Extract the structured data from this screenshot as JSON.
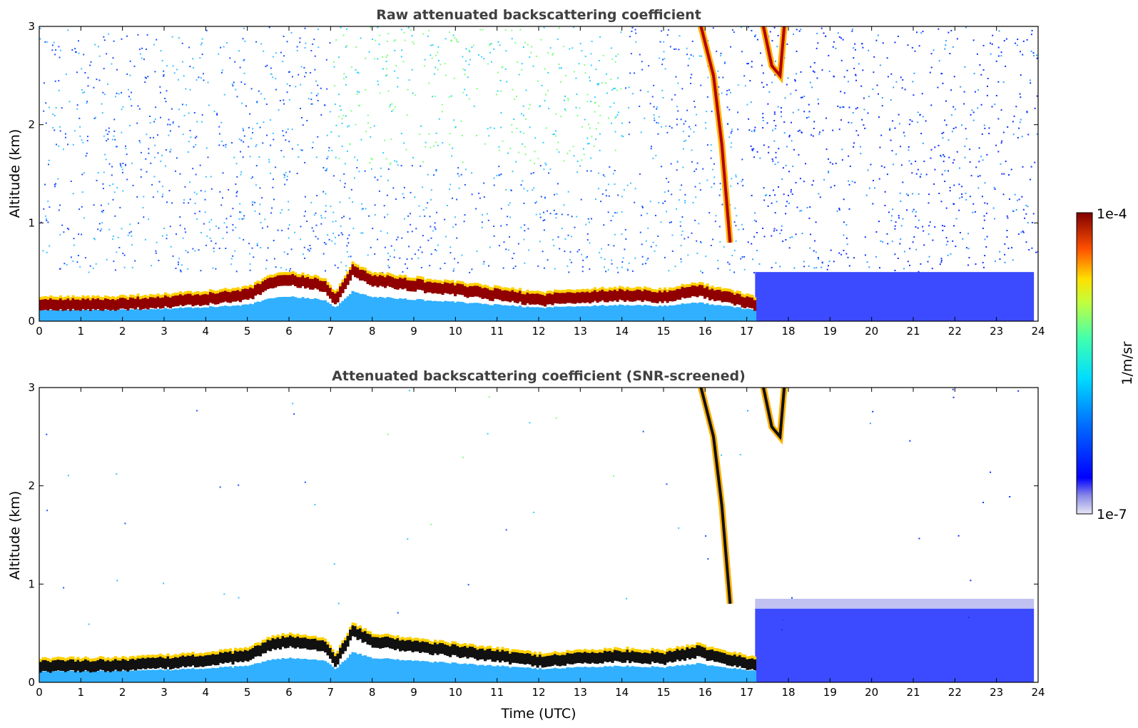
{
  "colorbar": {
    "max_label": "1e-4",
    "min_label": "1e-7",
    "unit_label": "1/m/sr",
    "scale": "log",
    "colormap": "jet"
  },
  "chart_data": [
    {
      "type": "heatmap",
      "title": "Raw attenuated backscattering coefficient",
      "xlabel": "",
      "ylabel": "Altitude (km)",
      "xlim": [
        0,
        24
      ],
      "ylim": [
        0,
        3
      ],
      "xticks": [
        "0",
        "1",
        "2",
        "3",
        "4",
        "5",
        "6",
        "7",
        "8",
        "9",
        "10",
        "11",
        "12",
        "13",
        "14",
        "15",
        "16",
        "17",
        "18",
        "19",
        "20",
        "21",
        "22",
        "23",
        "24"
      ],
      "yticks": [
        "0",
        "1",
        "2",
        "3"
      ],
      "boundary_layer_top_km": {
        "x": [
          0,
          1,
          2,
          3,
          4,
          5,
          5.5,
          6,
          6.8,
          7.1,
          7.5,
          8,
          9,
          10,
          11,
          12,
          13,
          14,
          15,
          15.8,
          16.2,
          16.8,
          17.2
        ],
        "y": [
          0.2,
          0.2,
          0.21,
          0.23,
          0.26,
          0.3,
          0.42,
          0.45,
          0.4,
          0.25,
          0.55,
          0.45,
          0.4,
          0.35,
          0.3,
          0.25,
          0.28,
          0.3,
          0.28,
          0.35,
          0.3,
          0.25,
          0.2
        ]
      },
      "cloud_segments": [
        {
          "x": [
            15.9,
            16.2,
            16.4,
            16.6
          ],
          "y": [
            3.0,
            2.5,
            1.8,
            0.8
          ]
        },
        {
          "x": [
            17.4,
            17.6,
            17.8,
            17.9
          ],
          "y": [
            3.0,
            2.6,
            2.5,
            3.0
          ]
        }
      ],
      "noise_level": "high"
    },
    {
      "type": "heatmap",
      "title": "Attenuated backscattering coefficient (SNR-screened)",
      "xlabel": "Time (UTC)",
      "ylabel": "Altitude (km)",
      "xlim": [
        0,
        24
      ],
      "ylim": [
        0,
        3
      ],
      "xticks": [
        "0",
        "1",
        "2",
        "3",
        "4",
        "5",
        "6",
        "7",
        "8",
        "9",
        "10",
        "11",
        "12",
        "13",
        "14",
        "15",
        "16",
        "17",
        "18",
        "19",
        "20",
        "21",
        "22",
        "23",
        "24"
      ],
      "yticks": [
        "0",
        "1",
        "2",
        "3"
      ],
      "boundary_layer_top_km": {
        "x": [
          0,
          1,
          2,
          3,
          4,
          5,
          5.5,
          6,
          6.8,
          7.1,
          7.5,
          8,
          9,
          10,
          11,
          12,
          13,
          14,
          15,
          15.8,
          16.2,
          16.8,
          17.2
        ],
        "y": [
          0.2,
          0.2,
          0.21,
          0.23,
          0.26,
          0.3,
          0.42,
          0.45,
          0.4,
          0.25,
          0.55,
          0.45,
          0.4,
          0.35,
          0.3,
          0.25,
          0.28,
          0.3,
          0.28,
          0.35,
          0.3,
          0.25,
          0.2
        ]
      },
      "cloud_segments": [
        {
          "x": [
            15.9,
            16.2,
            16.4,
            16.6
          ],
          "y": [
            3.0,
            2.5,
            1.8,
            0.8
          ]
        },
        {
          "x": [
            17.4,
            17.6,
            17.8,
            17.9
          ],
          "y": [
            3.0,
            2.6,
            2.5,
            3.0
          ]
        }
      ],
      "noise_level": "screened"
    }
  ]
}
